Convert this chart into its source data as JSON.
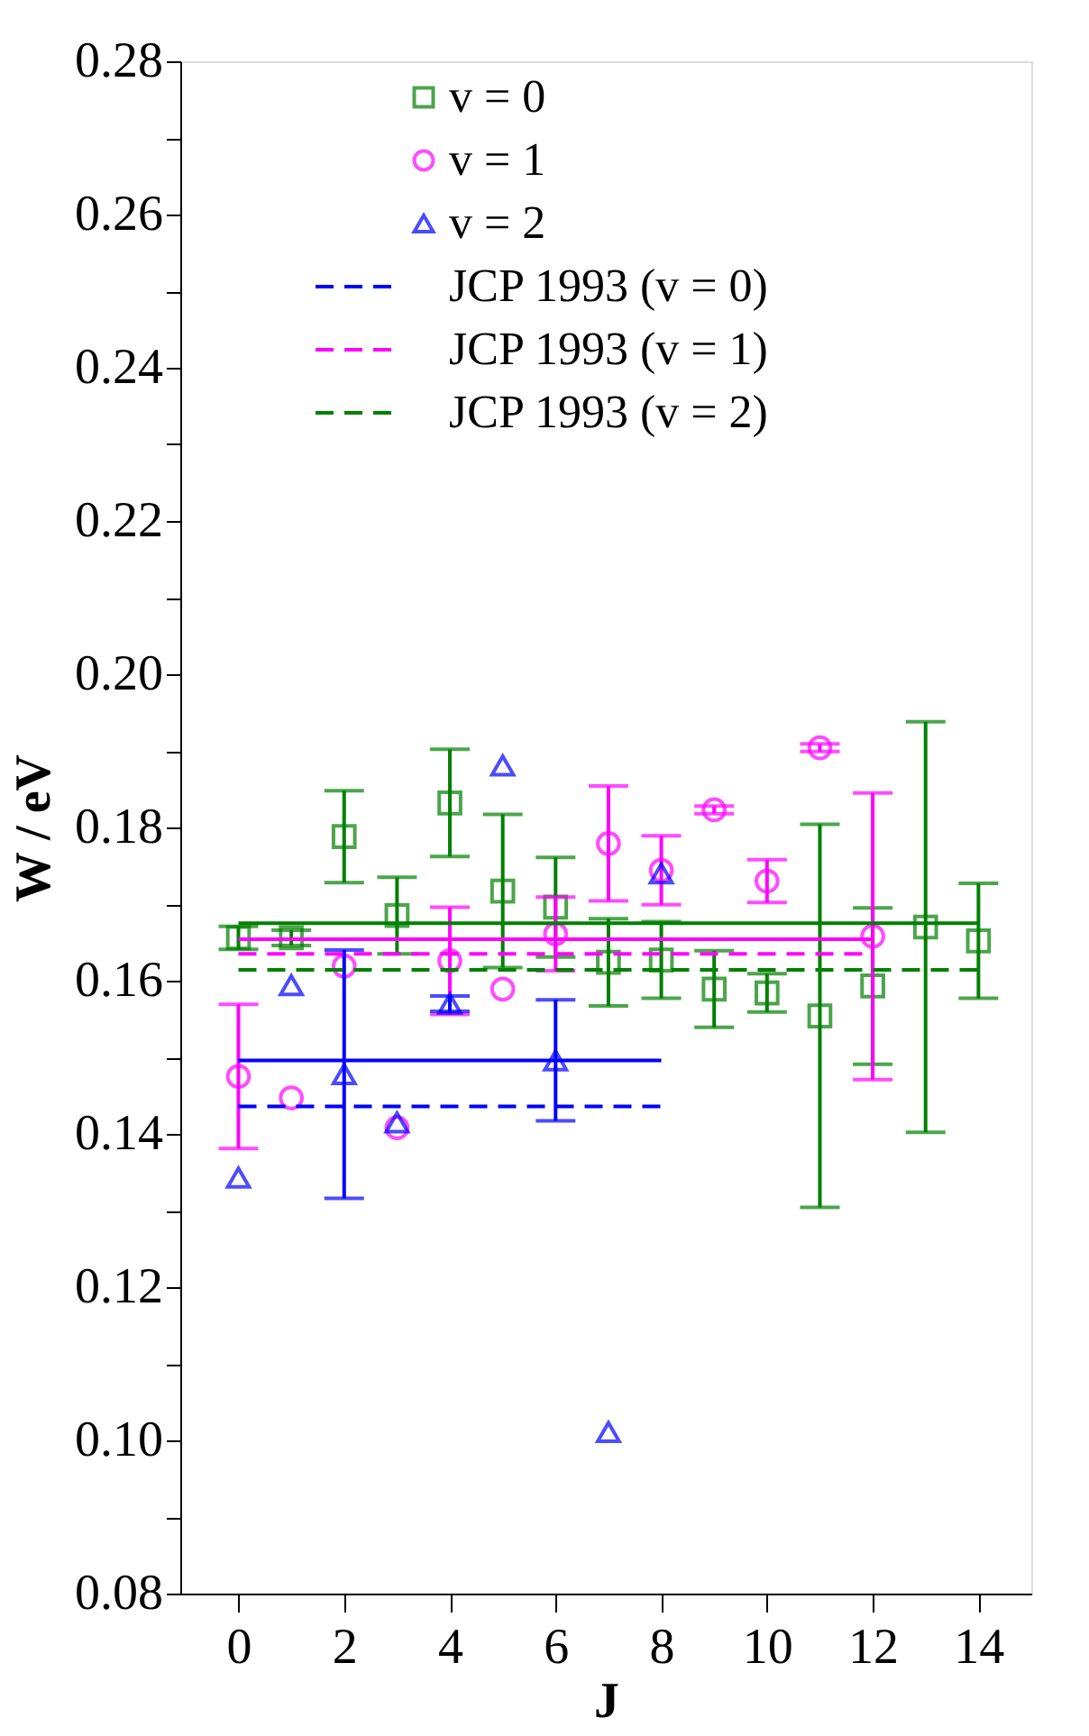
{
  "chart_data": {
    "type": "scatter",
    "xlabel": "J",
    "ylabel": "W / eV",
    "xlim": [
      -1.1,
      15
    ],
    "xticks": [
      0,
      2,
      4,
      6,
      8,
      10,
      12,
      14
    ],
    "ylim": [
      0.08,
      0.28
    ],
    "yticks": [
      0.08,
      {
        "value": 0.09,
        "label": null
      },
      {
        "value": 0.1,
        "label": "0.10"
      },
      {
        "value": 0.11,
        "label": null
      },
      0.12,
      {
        "value": 0.13,
        "label": null
      },
      0.14,
      {
        "value": 0.15,
        "label": null
      },
      0.16,
      {
        "value": 0.17,
        "label": null
      },
      0.18,
      {
        "value": 0.19,
        "label": null
      },
      {
        "value": 0.2,
        "label": "0.20"
      },
      {
        "value": 0.21,
        "label": null
      },
      0.22,
      {
        "value": 0.23,
        "label": null
      },
      0.24,
      {
        "value": 0.25,
        "label": null
      },
      0.26,
      {
        "value": 0.27,
        "label": null
      },
      0.28
    ],
    "grid": false,
    "legend": "top left",
    "series": [
      {
        "name": "v = 0",
        "marker": "square",
        "color": "#008000",
        "x": [
          0,
          1,
          2,
          3,
          4,
          5,
          6,
          7,
          8,
          9,
          10,
          11,
          12,
          13,
          14
        ],
        "values": [
          0.1656,
          0.1656,
          0.1788,
          0.1685,
          0.1832,
          0.1717,
          0.1696,
          0.1624,
          0.1627,
          0.1589,
          0.1584,
          0.1554,
          0.1593,
          0.167,
          0.1652
        ],
        "errors": [
          0.0015,
          0.001,
          0.006,
          0.005,
          0.007,
          0.01,
          0.0065,
          0.0057,
          0.005,
          0.005,
          0.0025,
          0.025,
          0.0102,
          0.0268,
          0.0075
        ]
      },
      {
        "name": "v = 1",
        "marker": "circle",
        "color": "#ff00ff",
        "x": [
          0,
          1,
          2,
          3,
          4,
          5,
          6,
          7,
          8,
          9,
          10,
          11,
          12
        ],
        "values": [
          0.1475,
          0.1447,
          0.1619,
          0.1408,
          0.1626,
          0.1589,
          0.1661,
          0.1779,
          0.1744,
          0.1823,
          0.173,
          0.1904,
          0.1658
        ],
        "errors": [
          0.0094,
          null,
          null,
          null,
          0.007,
          null,
          0.0048,
          0.0075,
          0.0045,
          0.0005,
          0.0028,
          0.0005,
          0.0187
        ]
      },
      {
        "name": "v = 2",
        "marker": "triangle",
        "color": "#0000ff",
        "x": [
          0,
          1,
          2,
          3,
          4,
          5,
          6,
          7,
          8
        ],
        "values": [
          0.1343,
          0.1594,
          0.1478,
          0.1415,
          0.157,
          0.1881,
          0.1496,
          0.1011,
          0.174
        ],
        "errors": [
          null,
          null,
          0.0162,
          null,
          0.001,
          null,
          0.0079,
          null,
          null
        ]
      },
      {
        "name": "JCP 1993 (v = 0)",
        "type": "line",
        "line_style": "dashed",
        "color": "#0000ff",
        "x": [
          0,
          8
        ],
        "values": [
          0.1436,
          0.1436
        ]
      },
      {
        "name": "JCP 1993 (v = 1)",
        "type": "line",
        "line_style": "dashed",
        "color": "#ff00ff",
        "x": [
          0,
          12
        ],
        "values": [
          0.1635,
          0.1635
        ]
      },
      {
        "name": "JCP 1993 (v = 2)",
        "type": "line",
        "line_style": "dashed",
        "color": "#008000",
        "x": [
          0,
          14
        ],
        "values": [
          0.1614,
          0.1614
        ]
      },
      {
        "type": "line",
        "line_style": "solid",
        "color": "#008000",
        "x": [
          0,
          14
        ],
        "values": [
          0.1675,
          0.1675
        ]
      },
      {
        "type": "line",
        "line_style": "solid",
        "color": "#ff00ff",
        "x": [
          0,
          12
        ],
        "values": [
          0.1654,
          0.1654
        ]
      },
      {
        "type": "line",
        "line_style": "solid",
        "color": "#0000ff",
        "x": [
          0,
          8
        ],
        "values": [
          0.1496,
          0.1496
        ]
      }
    ]
  }
}
